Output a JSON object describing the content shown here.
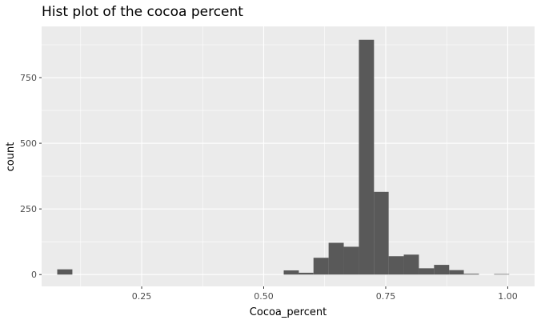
{
  "chart_data": {
    "type": "bar",
    "title": "Hist plot of the cocoa percent",
    "xlabel": "Cocoa_percent",
    "ylabel": "count",
    "xlim": [
      0.045,
      1.055
    ],
    "ylim": [
      -45,
      945
    ],
    "x_ticks": [
      {
        "value": 0.25,
        "label": "0.25"
      },
      {
        "value": 0.5,
        "label": "0.50"
      },
      {
        "value": 0.75,
        "label": "0.75"
      },
      {
        "value": 1.0,
        "label": "1.00"
      }
    ],
    "y_ticks": [
      {
        "value": 0,
        "label": "0"
      },
      {
        "value": 250,
        "label": "250"
      },
      {
        "value": 500,
        "label": "500"
      },
      {
        "value": 750,
        "label": "750"
      }
    ],
    "bins": [
      {
        "x0": 0.077,
        "x1": 0.108,
        "count": 20
      },
      {
        "x0": 0.541,
        "x1": 0.572,
        "count": 16
      },
      {
        "x0": 0.572,
        "x1": 0.602,
        "count": 7
      },
      {
        "x0": 0.602,
        "x1": 0.633,
        "count": 64
      },
      {
        "x0": 0.633,
        "x1": 0.664,
        "count": 121
      },
      {
        "x0": 0.664,
        "x1": 0.695,
        "count": 106
      },
      {
        "x0": 0.695,
        "x1": 0.726,
        "count": 894
      },
      {
        "x0": 0.726,
        "x1": 0.756,
        "count": 315
      },
      {
        "x0": 0.756,
        "x1": 0.787,
        "count": 70
      },
      {
        "x0": 0.787,
        "x1": 0.818,
        "count": 76
      },
      {
        "x0": 0.818,
        "x1": 0.849,
        "count": 24
      },
      {
        "x0": 0.849,
        "x1": 0.88,
        "count": 37
      },
      {
        "x0": 0.88,
        "x1": 0.91,
        "count": 17
      },
      {
        "x0": 0.91,
        "x1": 0.941,
        "count": 3
      },
      {
        "x0": 0.972,
        "x1": 1.003,
        "count": 2
      }
    ],
    "grid": true,
    "legend": "none",
    "colors": {
      "panel": "#ebebeb",
      "grid_major": "#ffffff",
      "bar": "#595959",
      "tick_text": "#4d4d4d",
      "tick_mark": "#333333"
    }
  }
}
